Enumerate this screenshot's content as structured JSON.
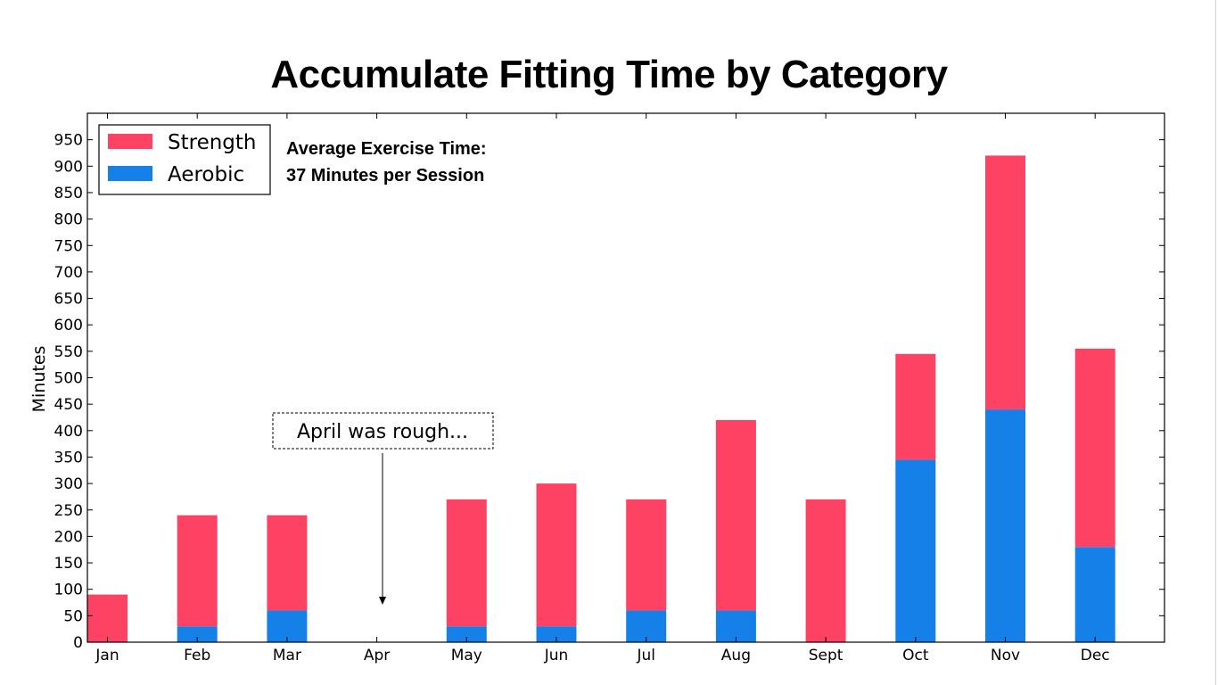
{
  "chart_data": {
    "type": "bar",
    "stacked": true,
    "title": "Accumulate Fitting Time by Category",
    "xlabel": "",
    "ylabel": "Minutes",
    "ylim": [
      0,
      1000
    ],
    "yticks": [
      0,
      50,
      100,
      150,
      200,
      250,
      300,
      350,
      400,
      450,
      500,
      550,
      600,
      650,
      700,
      750,
      800,
      850,
      900,
      950
    ],
    "categories": [
      "Jan",
      "Feb",
      "Mar",
      "Apr",
      "May",
      "Jun",
      "Jul",
      "Aug",
      "Sept",
      "Oct",
      "Nov",
      "Dec"
    ],
    "series": [
      {
        "name": "Aerobic",
        "color": "#1580e8",
        "values": [
          0,
          30,
          60,
          0,
          30,
          30,
          60,
          60,
          0,
          345,
          440,
          180
        ]
      },
      {
        "name": "Strength",
        "color": "#fe4263",
        "values": [
          90,
          210,
          180,
          0,
          240,
          270,
          210,
          360,
          270,
          200,
          480,
          375
        ]
      }
    ],
    "legend": {
      "placement": "top-left",
      "order": [
        "Strength",
        "Aerobic"
      ]
    },
    "grid": false,
    "annotations": {
      "average_line1": "Average Exercise Time:",
      "average_line2": "37 Minutes per Session",
      "callout": "April was rough...",
      "callout_target": "Apr"
    }
  }
}
